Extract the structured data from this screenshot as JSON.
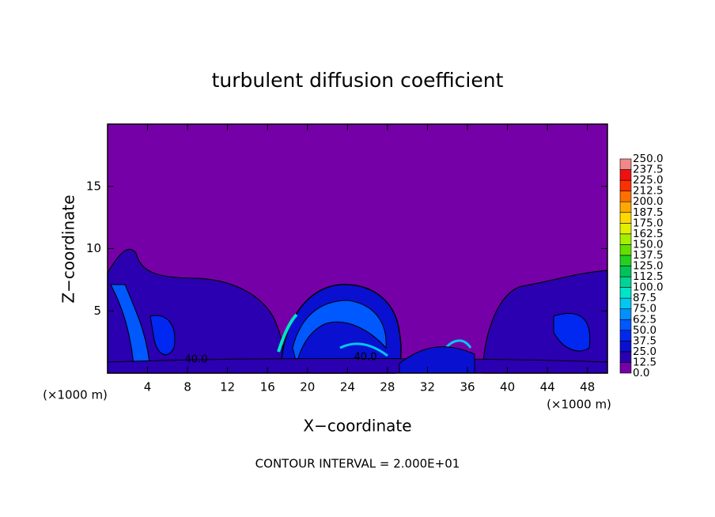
{
  "chart_data": {
    "type": "contour",
    "title": "turbulent diffusion coefficient",
    "x_label": "X−coordinate",
    "y_label": "Z−coordinate",
    "x_unit": "(×1000 m)",
    "x_unit_right": "(×1000 m)",
    "footnote": "CONTOUR INTERVAL = 2.000E+01",
    "annotations": [
      "40.0",
      "40.0"
    ],
    "xlim": [
      0,
      50
    ],
    "xticks": [
      4,
      8,
      12,
      16,
      20,
      24,
      28,
      32,
      36,
      40,
      44,
      48
    ],
    "ylim": [
      0,
      20
    ],
    "yticks": [
      5,
      10,
      15
    ],
    "colorbar": {
      "levels": [
        {
          "value": 0,
          "label": "0.0"
        },
        {
          "value": 12.5,
          "label": "12.5"
        },
        {
          "value": 25,
          "label": "25.0"
        },
        {
          "value": 37.5,
          "label": "37.5"
        },
        {
          "value": 50,
          "label": "50.0"
        },
        {
          "value": 62.5,
          "label": "62.5"
        },
        {
          "value": 75,
          "label": "75.0"
        },
        {
          "value": 87.5,
          "label": "87.5"
        },
        {
          "value": 100,
          "label": "100.0"
        },
        {
          "value": 112.5,
          "label": "112.5"
        },
        {
          "value": 125,
          "label": "125.0"
        },
        {
          "value": 137.5,
          "label": "137.5"
        },
        {
          "value": 150,
          "label": "150.0"
        },
        {
          "value": 162.5,
          "label": "162.5"
        },
        {
          "value": 175,
          "label": "175.0"
        },
        {
          "value": 187.5,
          "label": "187.5"
        },
        {
          "value": 200,
          "label": "200.0"
        },
        {
          "value": 212.5,
          "label": "212.5"
        },
        {
          "value": 225,
          "label": "225.0"
        },
        {
          "value": 237.5,
          "label": "237.5"
        },
        {
          "value": 250,
          "label": "250.0"
        }
      ],
      "colors": [
        "#7600a8",
        "#2a00b0",
        "#0a10d0",
        "#0028f0",
        "#0058ff",
        "#0090ff",
        "#00c8f0",
        "#00e4c8",
        "#00d494",
        "#00c45a",
        "#22d020",
        "#62e000",
        "#a4f000",
        "#e2f000",
        "#ffd800",
        "#ffa800",
        "#ff7000",
        "#ff3000",
        "#f01010",
        "#f08888"
      ]
    }
  }
}
